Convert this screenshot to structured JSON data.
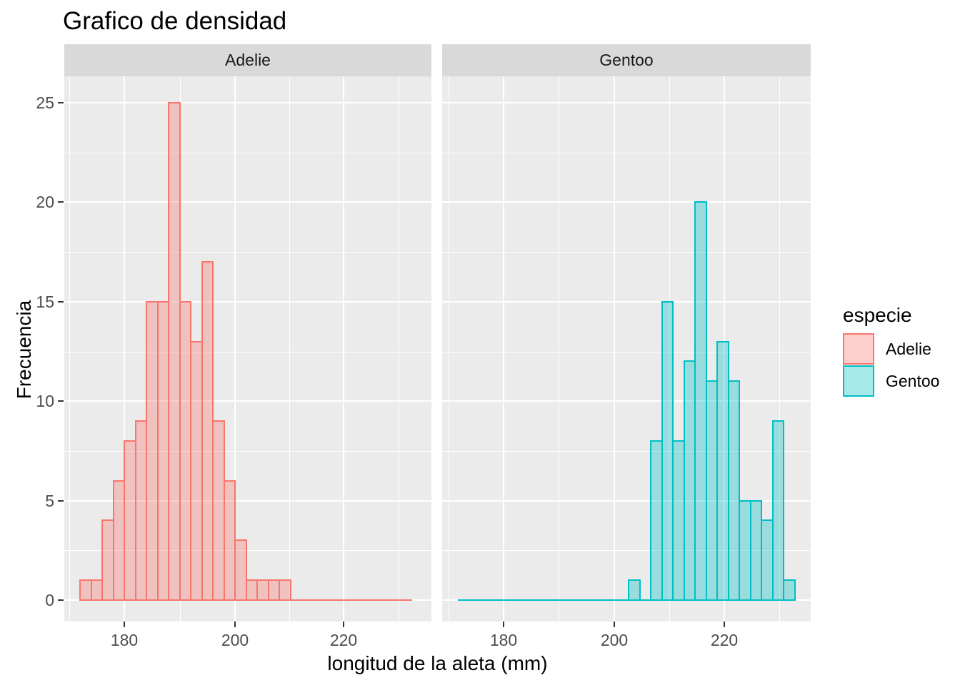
{
  "page": {
    "background": "#FFFFFF"
  },
  "chart_data": {
    "type": "bar",
    "subtype": "faceted_histogram",
    "title": "Grafico de densidad",
    "xlabel": "longitud de la aleta (mm)",
    "ylabel": "Frecuencia",
    "legend_title": "especie",
    "legend_position": "right",
    "grid": true,
    "ylim": [
      0,
      25
    ],
    "y_ticks": [
      0,
      5,
      10,
      15,
      20,
      25
    ],
    "x_tick_labels": [
      180,
      200,
      220
    ],
    "x_minor_ticks": [
      170,
      190,
      210,
      230
    ],
    "binwidth_mm": 2,
    "facets": [
      {
        "label": "Adelie",
        "color": "#F8766D",
        "bin_start_mm": 172,
        "counts": [
          1,
          1,
          4,
          6,
          8,
          9,
          15,
          15,
          25,
          15,
          13,
          17,
          9,
          6,
          3,
          1,
          1,
          1,
          1
        ]
      },
      {
        "label": "Gentoo",
        "color": "#00BFC4",
        "bin_start_mm": 202,
        "counts": [
          1,
          0,
          8,
          15,
          8,
          12,
          20,
          11,
          13,
          11,
          5,
          5,
          4,
          9,
          1
        ]
      }
    ]
  },
  "style": {
    "panel_bg": "#EBEBEB",
    "strip_bg": "#D9D9D9",
    "grid_color": "#FFFFFF",
    "tick_text_color": "#4D4D4D",
    "text_color": "#000000",
    "fill_alpha": 0.35
  }
}
